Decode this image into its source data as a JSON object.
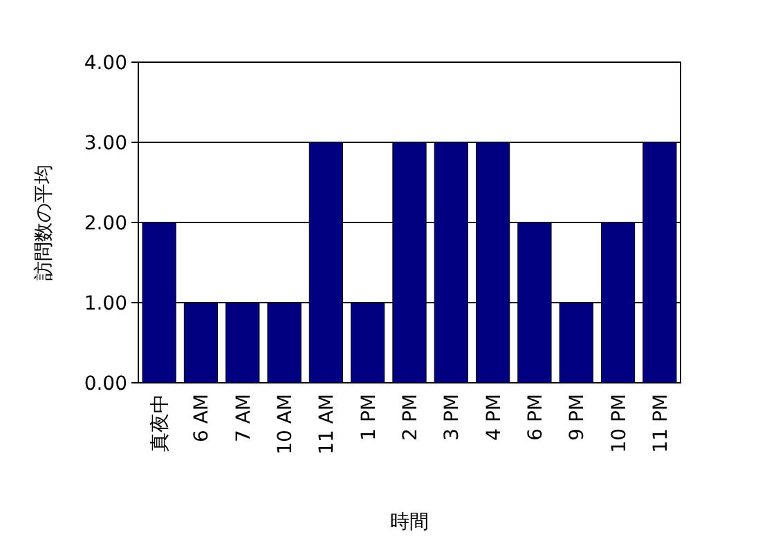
{
  "chart_data": {
    "type": "bar",
    "xlabel": "時間",
    "ylabel": "訪問数の平均",
    "categories": [
      "真夜中",
      "6 AM",
      "7 AM",
      "10 AM",
      "11 AM",
      "1 PM",
      "2 PM",
      "3 PM",
      "4 PM",
      "6 PM",
      "9 PM",
      "10 PM",
      "11 PM"
    ],
    "values": [
      2,
      1,
      1,
      1,
      3,
      1,
      3,
      3,
      3,
      2,
      1,
      2,
      3
    ],
    "color": "#000080",
    "ylim": [
      0,
      4
    ],
    "yticks": [
      {
        "value": 0,
        "label": "0.00"
      },
      {
        "value": 1,
        "label": "1.00"
      },
      {
        "value": 2,
        "label": "2.00"
      },
      {
        "value": 3,
        "label": "3.00"
      },
      {
        "value": 4,
        "label": "4.00"
      }
    ],
    "grid": "y"
  }
}
